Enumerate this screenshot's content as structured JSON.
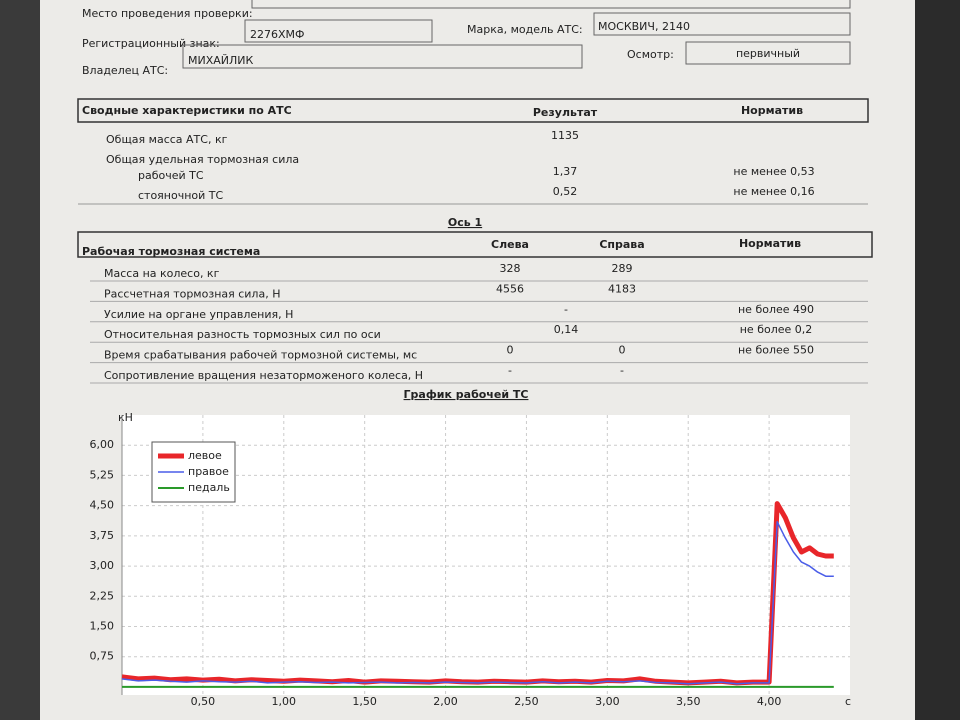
{
  "form": {
    "place_label": "Место проведения проверки:",
    "reg_label": "Регистрационный знак:",
    "reg_value": "2276ХМФ",
    "model_label": "Марка, модель АТС:",
    "model_value": "МОСКВИЧ, 2140",
    "inspection_label": "Осмотр:",
    "inspection_value": "первичный",
    "owner_label": "Владелец АТС:",
    "owner_value": "МИХАЙЛИК"
  },
  "summary": {
    "header": [
      "Сводные характеристики по АТС",
      "Результат",
      "Норматив"
    ],
    "rows": [
      {
        "label": "Общая масса АТС, кг",
        "result": "1135"
      },
      {
        "label": "Общая удельная тормозная сила"
      },
      {
        "label": "рабочей ТС",
        "result": "1,37",
        "norm": "не менее 0,53"
      },
      {
        "label": "стояночной ТС",
        "result": "0,52",
        "norm": "не менее 0,16"
      }
    ]
  },
  "axle_title": "Ось 1",
  "brakes": {
    "header": [
      "Рабочая тормозная система",
      "Слева",
      "Справа",
      "Норматив"
    ],
    "rows": [
      {
        "label": "Масса на колесо, кг",
        "left": "328",
        "right": "289"
      },
      {
        "label": "Рассчетная тормозная сила, Н",
        "left": "4556",
        "right": "4183"
      },
      {
        "label": "Усилие на органе управления, Н",
        "both": "-",
        "norm": "не более 490"
      },
      {
        "label": "Относительная разность тормозных сил по оси",
        "both": "0,14",
        "norm": "не более 0,2"
      },
      {
        "label": "Время срабатывания рабочей тормозной системы, мс",
        "left": "0",
        "right": "0",
        "norm": "не более 550"
      },
      {
        "label": "Сопротивление вращения незаторможеного колеса, Н",
        "left": "-",
        "right": "-"
      }
    ]
  },
  "chart_data": {
    "type": "line",
    "title": "График рабочей ТС",
    "y_label": "кН",
    "x_label": "с",
    "xlim": [
      0,
      4.5
    ],
    "ylim": [
      -0.2,
      6.75
    ],
    "grid": true,
    "legend": "upper left",
    "xticks": [
      {
        "value": 0.5,
        "label": "0,50"
      },
      {
        "value": 1,
        "label": "1,00"
      },
      {
        "value": 1.5,
        "label": "1,50"
      },
      {
        "value": 2,
        "label": "2,00"
      },
      {
        "value": 2.5,
        "label": "2,50"
      },
      {
        "value": 3,
        "label": "3,00"
      },
      {
        "value": 3.5,
        "label": "3,50"
      },
      {
        "value": 4,
        "label": "4,00"
      }
    ],
    "yticks": [
      {
        "value": 0.75,
        "label": "0,75"
      },
      {
        "value": 1.5,
        "label": "1,50"
      },
      {
        "value": 2.25,
        "label": "2,25"
      },
      {
        "value": 3,
        "label": "3,00"
      },
      {
        "value": 3.75,
        "label": "3,75"
      },
      {
        "value": 4.5,
        "label": "4,50"
      },
      {
        "value": 5.25,
        "label": "5,25"
      },
      {
        "value": 6,
        "label": "6,00"
      }
    ],
    "x": [
      0,
      0.1,
      0.2,
      0.3,
      0.4,
      0.5,
      0.6,
      0.7,
      0.8,
      0.9,
      1,
      1.1,
      1.2,
      1.3,
      1.4,
      1.5,
      1.6,
      1.7,
      1.8,
      1.9,
      2,
      2.1,
      2.2,
      2.3,
      2.4,
      2.5,
      2.6,
      2.7,
      2.8,
      2.9,
      3,
      3.1,
      3.2,
      3.3,
      3.4,
      3.5,
      3.6,
      3.7,
      3.8,
      3.9,
      4,
      4.05,
      4.1,
      4.15,
      4.2,
      4.25,
      4.3,
      4.35,
      4.4
    ],
    "series": [
      {
        "name": "левое",
        "color": "#e8262a",
        "width": 5,
        "values": [
          0.25,
          0.2,
          0.22,
          0.18,
          0.2,
          0.17,
          0.19,
          0.15,
          0.18,
          0.16,
          0.14,
          0.17,
          0.15,
          0.13,
          0.16,
          0.12,
          0.15,
          0.14,
          0.13,
          0.12,
          0.15,
          0.13,
          0.12,
          0.14,
          0.13,
          0.12,
          0.15,
          0.13,
          0.14,
          0.12,
          0.16,
          0.15,
          0.2,
          0.14,
          0.12,
          0.1,
          0.12,
          0.14,
          0.1,
          0.12,
          0.12,
          4.55,
          4.2,
          3.7,
          3.35,
          3.45,
          3.3,
          3.25,
          3.25
        ]
      },
      {
        "name": "правое",
        "color": "#4a5de8",
        "width": 1.5,
        "values": [
          0.2,
          0.15,
          0.17,
          0.14,
          0.12,
          0.15,
          0.13,
          0.12,
          0.14,
          0.1,
          0.12,
          0.13,
          0.11,
          0.12,
          0.1,
          0.11,
          0.12,
          0.1,
          0.11,
          0.1,
          0.12,
          0.11,
          0.1,
          0.12,
          0.11,
          0.1,
          0.13,
          0.1,
          0.12,
          0.1,
          0.14,
          0.13,
          0.15,
          0.11,
          0.1,
          0.08,
          0.1,
          0.12,
          0.08,
          0.1,
          0.1,
          4.1,
          3.7,
          3.35,
          3.1,
          3,
          2.85,
          2.75,
          2.75
        ]
      },
      {
        "name": "педаль",
        "color": "#2a9a2a",
        "width": 2,
        "values": [
          0,
          0,
          0,
          0,
          0,
          0,
          0,
          0,
          0,
          0,
          0,
          0,
          0,
          0,
          0,
          0,
          0,
          0,
          0,
          0,
          0,
          0,
          0,
          0,
          0,
          0,
          0,
          0,
          0,
          0,
          0,
          0,
          0,
          0,
          0,
          0,
          0,
          0,
          0,
          0,
          0,
          0,
          0,
          0,
          0,
          0,
          0,
          0,
          0
        ]
      }
    ]
  }
}
